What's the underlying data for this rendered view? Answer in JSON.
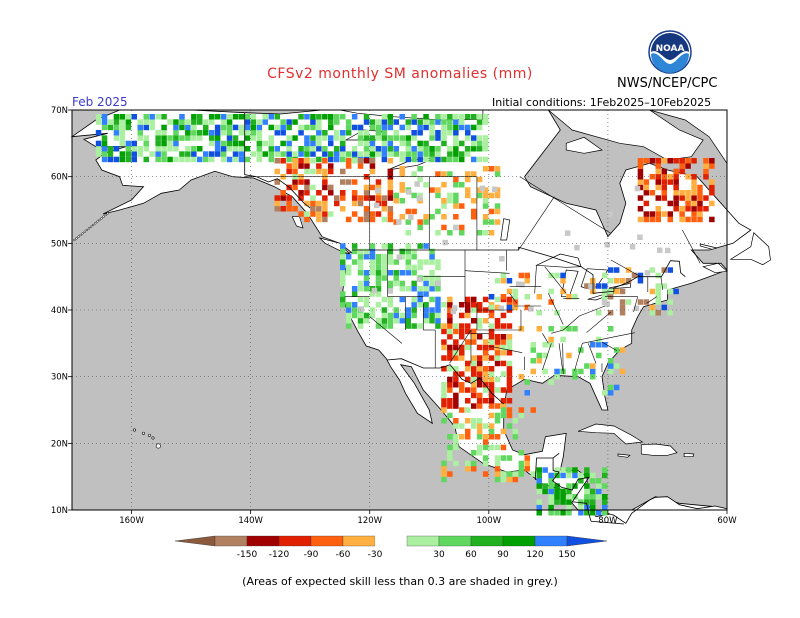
{
  "title": "CFSv2 monthly SM anomalies (mm)",
  "organization": "NWS/NCEP/CPC",
  "logo_text": "NOAA",
  "forecast_month": "Feb 2025",
  "initial_conditions": "Initial conditions: 1Feb2025–10Feb2025",
  "note": "(Areas of expected skill less than 0.3 are shaded in grey.)",
  "colors": {
    "title": "#e03030",
    "month": "#3a3ad0",
    "ocean_grey": "#c0c0c0",
    "land_white": "#ffffff"
  },
  "map": {
    "lon_labels": [
      "160W",
      "140W",
      "120W",
      "100W",
      "80W",
      "60W"
    ],
    "lat_labels": [
      "70N",
      "60N",
      "50N",
      "40N",
      "30N",
      "20N",
      "10N"
    ]
  },
  "colorbar": {
    "labels": [
      "-150",
      "-120",
      "-90",
      "-60",
      "-30",
      "30",
      "60",
      "90",
      "120",
      "150"
    ],
    "colors": [
      "#8b5a3c",
      "#b08060",
      "#a00000",
      "#e02000",
      "#ff6010",
      "#ffb040",
      "#ffffff",
      "#aaf0a0",
      "#60d860",
      "#20b020",
      "#00a000",
      "#3080ff",
      "#1050e0"
    ]
  }
}
